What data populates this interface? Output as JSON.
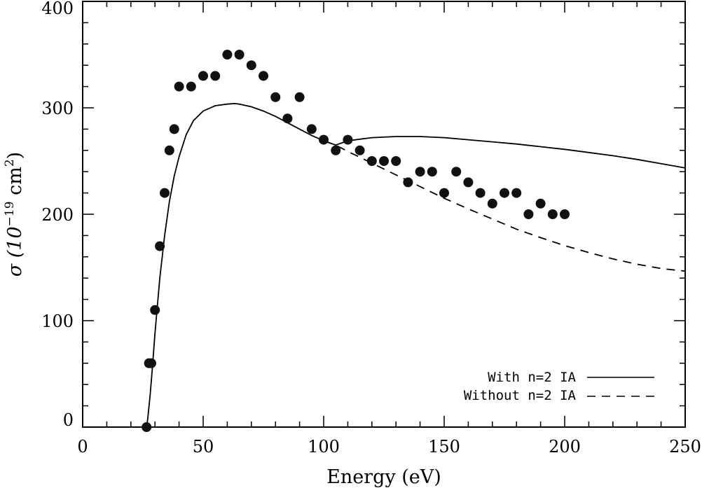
{
  "chart_data": {
    "type": "scatter",
    "title": "",
    "xlabel": "Energy (eV)",
    "ylabel": {
      "prefix": "σ (10",
      "sup1": "−19",
      "mid": " cm",
      "sup2": "2",
      "suffix": ")"
    },
    "xlim": [
      0,
      250
    ],
    "ylim": [
      0,
      400
    ],
    "x_ticks": [
      0,
      50,
      100,
      150,
      200,
      250
    ],
    "y_ticks": [
      0,
      100,
      200,
      300,
      400
    ],
    "x_tick_labels": [
      "0",
      "50",
      "100",
      "150",
      "200",
      "250"
    ],
    "y_tick_labels": [
      "0",
      "100",
      "200",
      "300",
      "400"
    ],
    "grid": false,
    "legend_position": "bottom-right",
    "series": [
      {
        "name": "With n=2 IA",
        "kind": "line",
        "style": "solid",
        "x": [
          26.5,
          27,
          28,
          29,
          30,
          32,
          34,
          36,
          38,
          40,
          43,
          46,
          50,
          55,
          60,
          63,
          65,
          70,
          75,
          80,
          85,
          90,
          95,
          100,
          105,
          110,
          115,
          120,
          130,
          140,
          150,
          160,
          170,
          180,
          190,
          200,
          210,
          220,
          230,
          240,
          250
        ],
        "y": [
          0,
          8,
          30,
          58,
          88,
          140,
          180,
          212,
          236,
          254,
          275,
          288,
          297,
          302,
          303.5,
          304,
          303.5,
          301,
          297,
          292,
          286,
          280,
          274,
          269,
          265,
          269,
          270.5,
          272,
          273,
          273,
          272,
          270,
          268,
          266,
          263.5,
          261,
          258,
          255,
          251.5,
          247.5,
          243.5
        ]
      },
      {
        "name": "Without n=2 IA",
        "kind": "line",
        "style": "dashed",
        "x": [
          100,
          105,
          110,
          120,
          130,
          140,
          150,
          160,
          170,
          180,
          190,
          200,
          210,
          220,
          230,
          240,
          250
        ],
        "y": [
          269,
          265,
          259,
          248,
          237,
          226,
          215,
          205,
          195.5,
          186,
          178,
          170.5,
          164,
          158,
          153,
          149,
          146.5
        ]
      },
      {
        "name": "",
        "kind": "points",
        "x": [
          26.5,
          27.5,
          28.5,
          30,
          32,
          34,
          36,
          38,
          40,
          45,
          50,
          55,
          60,
          65,
          70,
          75,
          80,
          85,
          90,
          95,
          100,
          105,
          110,
          115,
          120,
          125,
          130,
          135,
          140,
          145,
          150,
          155,
          160,
          165,
          170,
          175,
          180,
          185,
          190,
          195,
          200
        ],
        "y": [
          0,
          60,
          60,
          110,
          170,
          220,
          260,
          280,
          320,
          320,
          330,
          330,
          350,
          350,
          340,
          330,
          310,
          290,
          310,
          280,
          270,
          260,
          270,
          260,
          250,
          250,
          250,
          230,
          240,
          240,
          220,
          240,
          230,
          220,
          210,
          220,
          220,
          200,
          210,
          200,
          200
        ]
      }
    ]
  }
}
